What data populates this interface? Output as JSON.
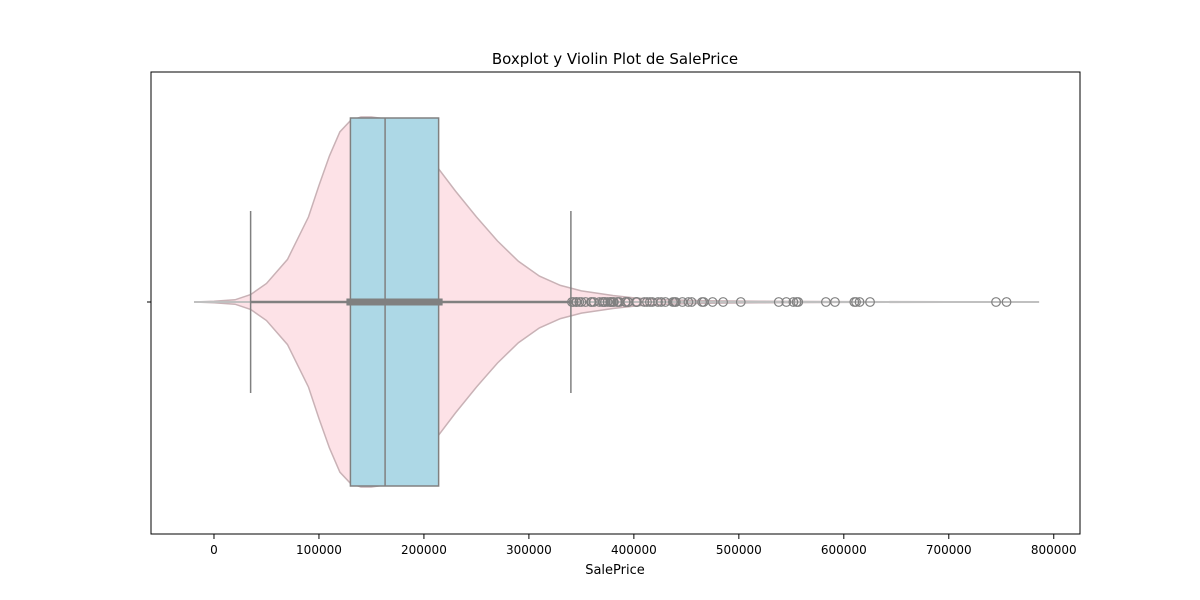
{
  "chart_data": {
    "type": "box-violin",
    "title": "Boxplot y Violin Plot de SalePrice",
    "xlabel": "SalePrice",
    "ylabel": "",
    "xlim": [
      -60000,
      825000
    ],
    "xticks": [
      0,
      100000,
      200000,
      300000,
      400000,
      500000,
      600000,
      700000,
      800000
    ],
    "xtick_labels": [
      "0",
      "100000",
      "200000",
      "300000",
      "400000",
      "500000",
      "600000",
      "700000",
      "800000"
    ],
    "grid": false,
    "legend": "none",
    "box": {
      "whisker_low": 34900,
      "q1": 129975,
      "median": 163000,
      "q3": 214000,
      "whisker_high": 340000,
      "color": "#add8e6",
      "edge_color": "#808080"
    },
    "outliers": [
      341000,
      342643,
      345000,
      345474,
      348000,
      350000,
      354000,
      359100,
      360000,
      361919,
      367294,
      369900,
      370878,
      372402,
      372500,
      375000,
      377426,
      377500,
      378500,
      380000,
      381000,
      383970,
      385000,
      386250,
      392000,
      392500,
      394432,
      394617,
      402000,
      402861,
      403000,
      410000,
      412500,
      415298,
      417500,
      423000,
      426000,
      430000,
      437154,
      438780,
      440000,
      446261,
      451950,
      455000,
      465000,
      466500,
      475000,
      485000,
      501837,
      538000,
      545224,
      552000,
      555000,
      556581,
      582933,
      591587,
      610000,
      611657,
      615000,
      625000,
      745000,
      755000
    ],
    "violin": {
      "color": "#fde0e6",
      "edge_color": "#c9b2b6",
      "x": [
        -19000,
        0,
        20000,
        34900,
        50000,
        70000,
        90000,
        100000,
        110000,
        120000,
        129975,
        140000,
        150000,
        163000,
        175000,
        190000,
        200000,
        214000,
        230000,
        250000,
        270000,
        290000,
        310000,
        330000,
        350000,
        380000,
        400000,
        430000,
        470000,
        520000,
        600000,
        700000,
        786000
      ],
      "density": [
        0.0,
        0.004,
        0.012,
        0.04,
        0.1,
        0.23,
        0.46,
        0.63,
        0.79,
        0.92,
        0.98,
        1.0,
        1.0,
        0.99,
        0.97,
        0.92,
        0.86,
        0.72,
        0.6,
        0.46,
        0.33,
        0.22,
        0.14,
        0.09,
        0.06,
        0.035,
        0.022,
        0.012,
        0.007,
        0.004,
        0.002,
        0.001,
        0.0
      ]
    }
  }
}
